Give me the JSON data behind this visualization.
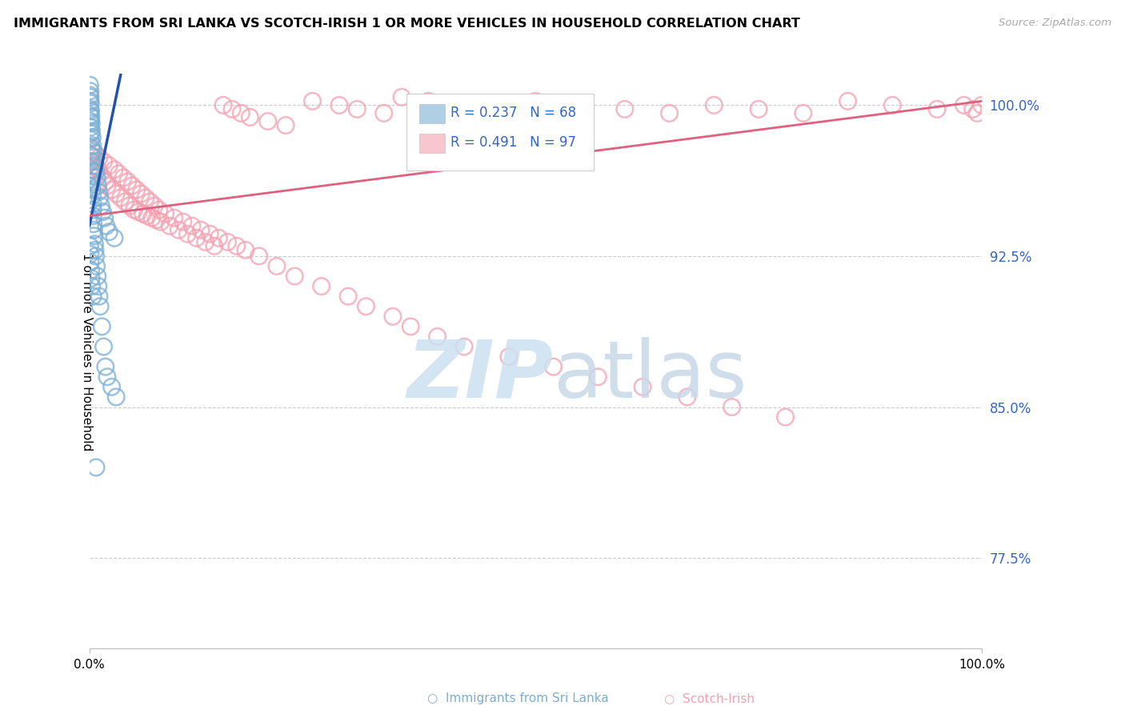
{
  "title": "IMMIGRANTS FROM SRI LANKA VS SCOTCH-IRISH 1 OR MORE VEHICLES IN HOUSEHOLD CORRELATION CHART",
  "source": "Source: ZipAtlas.com",
  "ylabel": "1 or more Vehicles in Household",
  "legend_blue_R": "R = 0.237",
  "legend_blue_N": "N = 68",
  "legend_pink_R": "R = 0.491",
  "legend_pink_N": "N = 97",
  "ytick_values": [
    77.5,
    85.0,
    92.5,
    100.0
  ],
  "xlim": [
    0.0,
    100.0
  ],
  "ylim": [
    73.0,
    102.5
  ],
  "blue_color": "#7BAFD4",
  "pink_color": "#F4A0B0",
  "blue_edge_color": "#5580B0",
  "pink_edge_color": "#E07090",
  "blue_line_color": "#2255AA",
  "pink_line_color": "#E06080",
  "text_blue": "#3366CC",
  "blue_scatter_x": [
    0.05,
    0.08,
    0.1,
    0.1,
    0.12,
    0.13,
    0.15,
    0.15,
    0.18,
    0.2,
    0.22,
    0.25,
    0.28,
    0.3,
    0.32,
    0.35,
    0.38,
    0.4,
    0.42,
    0.45,
    0.5,
    0.55,
    0.6,
    0.65,
    0.7,
    0.8,
    0.9,
    1.0,
    1.1,
    1.2,
    1.4,
    1.6,
    1.8,
    2.0,
    2.5,
    3.0,
    0.06,
    0.09,
    0.11,
    0.14,
    0.16,
    0.19,
    0.23,
    0.26,
    0.33,
    0.36,
    0.46,
    0.52,
    0.58,
    0.72,
    0.85,
    0.95,
    1.05,
    1.15,
    1.3,
    1.5,
    1.7,
    1.9,
    2.2,
    2.8,
    0.07,
    0.1,
    0.12,
    0.17,
    0.21,
    0.27,
    0.4,
    0.75
  ],
  "blue_scatter_y": [
    100.5,
    100.2,
    99.8,
    99.5,
    99.2,
    98.9,
    98.6,
    98.3,
    97.9,
    97.5,
    97.2,
    96.8,
    96.5,
    96.2,
    95.8,
    95.5,
    95.1,
    94.8,
    94.5,
    94.1,
    93.8,
    93.5,
    93.1,
    92.8,
    92.5,
    92.0,
    91.5,
    91.0,
    90.5,
    90.0,
    89.0,
    88.0,
    87.0,
    86.5,
    86.0,
    85.5,
    101.0,
    100.7,
    100.4,
    100.1,
    99.7,
    99.4,
    99.1,
    98.7,
    98.4,
    98.0,
    97.7,
    97.4,
    97.0,
    96.7,
    96.4,
    96.0,
    95.7,
    95.4,
    95.0,
    94.7,
    94.4,
    94.0,
    93.7,
    93.4,
    93.0,
    92.6,
    92.2,
    91.8,
    91.4,
    91.0,
    90.5,
    82.0
  ],
  "pink_scatter_x": [
    0.2,
    0.5,
    0.8,
    1.0,
    1.2,
    1.5,
    1.8,
    2.0,
    2.5,
    3.0,
    3.5,
    4.0,
    4.5,
    5.0,
    5.5,
    6.0,
    6.5,
    7.0,
    7.5,
    8.0,
    9.0,
    10.0,
    11.0,
    12.0,
    13.0,
    14.0,
    15.0,
    16.0,
    17.0,
    18.0,
    20.0,
    22.0,
    25.0,
    28.0,
    30.0,
    33.0,
    35.0,
    38.0,
    40.0,
    45.0,
    50.0,
    55.0,
    60.0,
    65.0,
    70.0,
    75.0,
    80.0,
    85.0,
    90.0,
    95.0,
    98.0,
    99.0,
    99.5,
    100.0,
    0.3,
    0.7,
    1.1,
    1.6,
    2.2,
    2.8,
    3.3,
    3.8,
    4.3,
    4.8,
    5.3,
    5.8,
    6.3,
    6.8,
    7.3,
    7.8,
    8.5,
    9.5,
    10.5,
    11.5,
    12.5,
    13.5,
    14.5,
    15.5,
    16.5,
    17.5,
    19.0,
    21.0,
    23.0,
    26.0,
    29.0,
    31.0,
    34.0,
    36.0,
    39.0,
    42.0,
    47.0,
    52.0,
    57.0,
    62.0,
    67.0,
    72.0,
    78.0
  ],
  "pink_scatter_y": [
    97.5,
    97.2,
    96.9,
    96.8,
    96.6,
    96.4,
    96.2,
    96.0,
    95.8,
    95.6,
    95.4,
    95.2,
    95.0,
    94.8,
    94.7,
    94.6,
    94.5,
    94.4,
    94.3,
    94.2,
    94.0,
    93.8,
    93.6,
    93.4,
    93.2,
    93.0,
    100.0,
    99.8,
    99.6,
    99.4,
    99.2,
    99.0,
    100.2,
    100.0,
    99.8,
    99.6,
    100.4,
    100.2,
    100.0,
    99.8,
    100.2,
    100.0,
    99.8,
    99.6,
    100.0,
    99.8,
    99.6,
    100.2,
    100.0,
    99.8,
    100.0,
    99.8,
    99.6,
    100.0,
    97.8,
    97.6,
    97.4,
    97.2,
    97.0,
    96.8,
    96.6,
    96.4,
    96.2,
    96.0,
    95.8,
    95.6,
    95.4,
    95.2,
    95.0,
    94.8,
    94.6,
    94.4,
    94.2,
    94.0,
    93.8,
    93.6,
    93.4,
    93.2,
    93.0,
    92.8,
    92.5,
    92.0,
    91.5,
    91.0,
    90.5,
    90.0,
    89.5,
    89.0,
    88.5,
    88.0,
    87.5,
    87.0,
    86.5,
    86.0,
    85.5,
    85.0,
    84.5
  ],
  "blue_trend_x": [
    0.0,
    3.5
  ],
  "blue_trend_y": [
    94.0,
    101.5
  ],
  "pink_trend_x": [
    0.0,
    100.0
  ],
  "pink_trend_y": [
    94.5,
    100.2
  ]
}
